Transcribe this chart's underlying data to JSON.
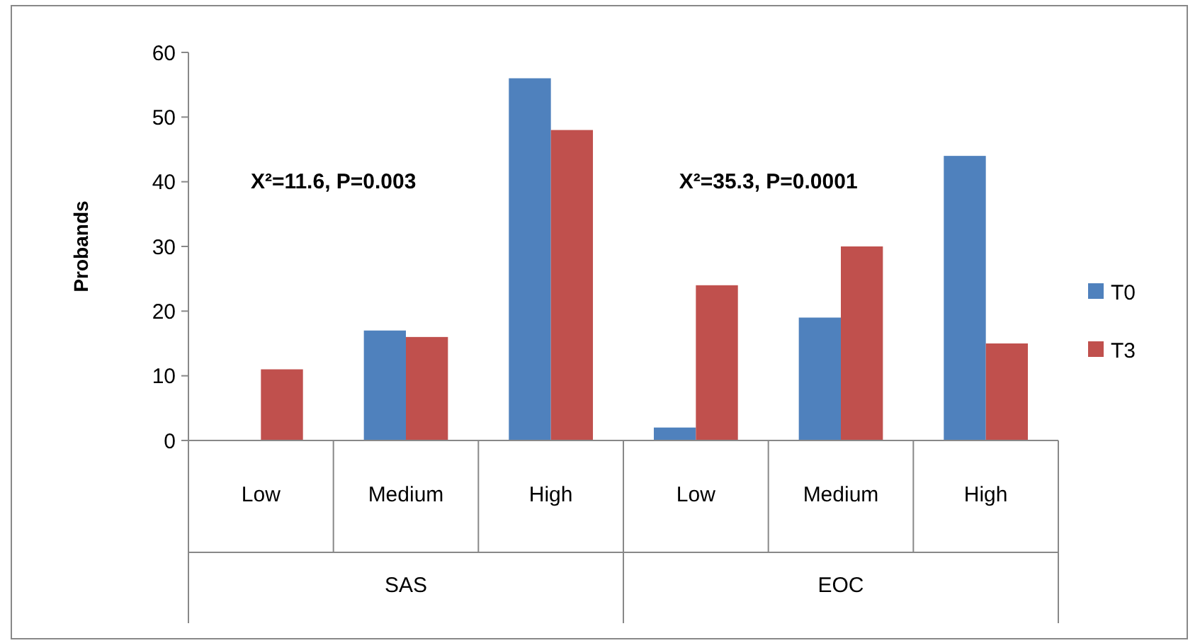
{
  "chart_data": {
    "type": "bar",
    "ylabel": "Probands",
    "categories": [
      "Low",
      "Medium",
      "High",
      "Low",
      "Medium",
      "High"
    ],
    "series": [
      {
        "name": "T0",
        "color": "#4f81bd",
        "values": [
          0,
          17,
          56,
          2,
          19,
          44
        ]
      },
      {
        "name": "T3",
        "color": "#c0504d",
        "values": [
          11,
          16,
          48,
          24,
          30,
          15
        ]
      }
    ],
    "ylim": [
      0,
      60
    ],
    "yticks": [
      0,
      10,
      20,
      30,
      40,
      50,
      60
    ],
    "grid": false,
    "legend": "right",
    "annotations": [
      "X²=11.6, P=0.003",
      "X²=35.3, P=0.0001",
      "SAS",
      "EOC"
    ]
  }
}
